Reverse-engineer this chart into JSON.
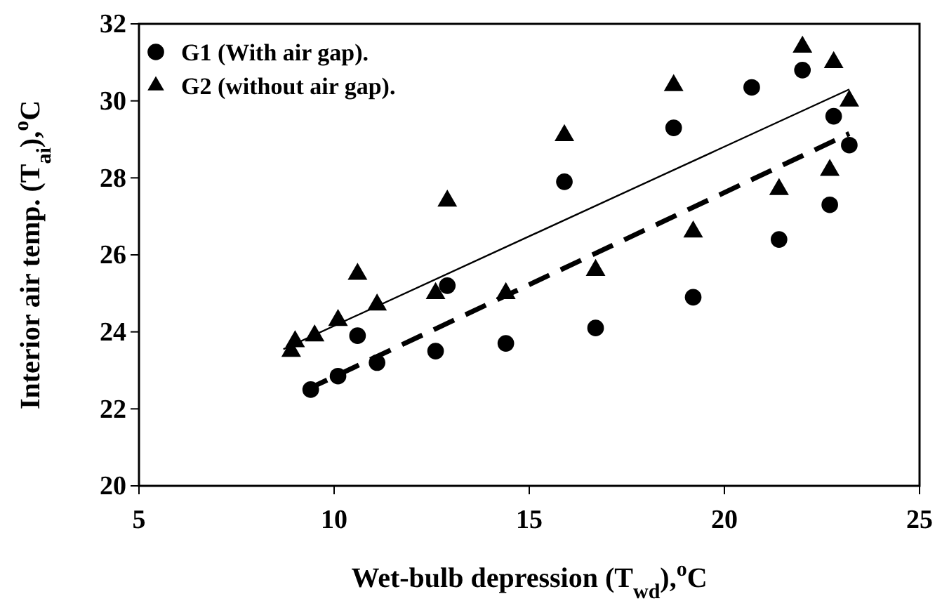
{
  "chart_data": {
    "type": "scatter",
    "xlabel": "Wet-bulb depression (T$_{wd}$),$^{o}$C",
    "ylabel": "Interior air temp. (T$_{ai}$),$^{o}$C",
    "xlim": [
      5,
      25
    ],
    "xticks": [
      5,
      10,
      15,
      20,
      25
    ],
    "ylim": [
      20,
      32
    ],
    "yticks": [
      20,
      22,
      24,
      26,
      28,
      30,
      32
    ],
    "grid": false,
    "legend": "top left",
    "series": [
      {
        "name": "G1 (With air gap).",
        "color": "#000000",
        "marker": "circle",
        "x": [
          9.4,
          10.1,
          10.6,
          11.1,
          12.6,
          12.9,
          14.4,
          15.9,
          16.7,
          18.7,
          19.2,
          20.7,
          21.4,
          22,
          22.7,
          22.8,
          23.2
        ],
        "values": [
          22.5,
          22.85,
          23.9,
          23.2,
          23.5,
          25.2,
          23.7,
          27.9,
          24.1,
          29.3,
          24.9,
          30.35,
          26.4,
          30.8,
          27.3,
          29.6,
          28.85
        ]
      },
      {
        "name": "G2 (without air gap).",
        "color": "#000000",
        "marker": "triangle",
        "x": [
          8.9,
          9.0,
          9.5,
          10.1,
          10.6,
          11.1,
          12.6,
          12.9,
          14.4,
          15.9,
          16.7,
          18.7,
          19.2,
          21.4,
          22,
          22.7,
          22.8,
          23.2
        ],
        "values": [
          23.5,
          23.75,
          23.9,
          24.3,
          25.5,
          24.7,
          25.0,
          27.4,
          25.0,
          29.1,
          25.6,
          30.4,
          26.6,
          27.7,
          31.4,
          28.2,
          31.0,
          30.0
        ]
      },
      {
        "type": "line",
        "color": "#000000",
        "line_style": "solid",
        "x": [
          8.7,
          23.2
        ],
        "values": [
          23.55,
          30.3
        ]
      },
      {
        "type": "line",
        "color": "#000000",
        "line_style": "dashed",
        "x": [
          9.3,
          23.2
        ],
        "values": [
          22.5,
          29.15
        ]
      }
    ]
  }
}
